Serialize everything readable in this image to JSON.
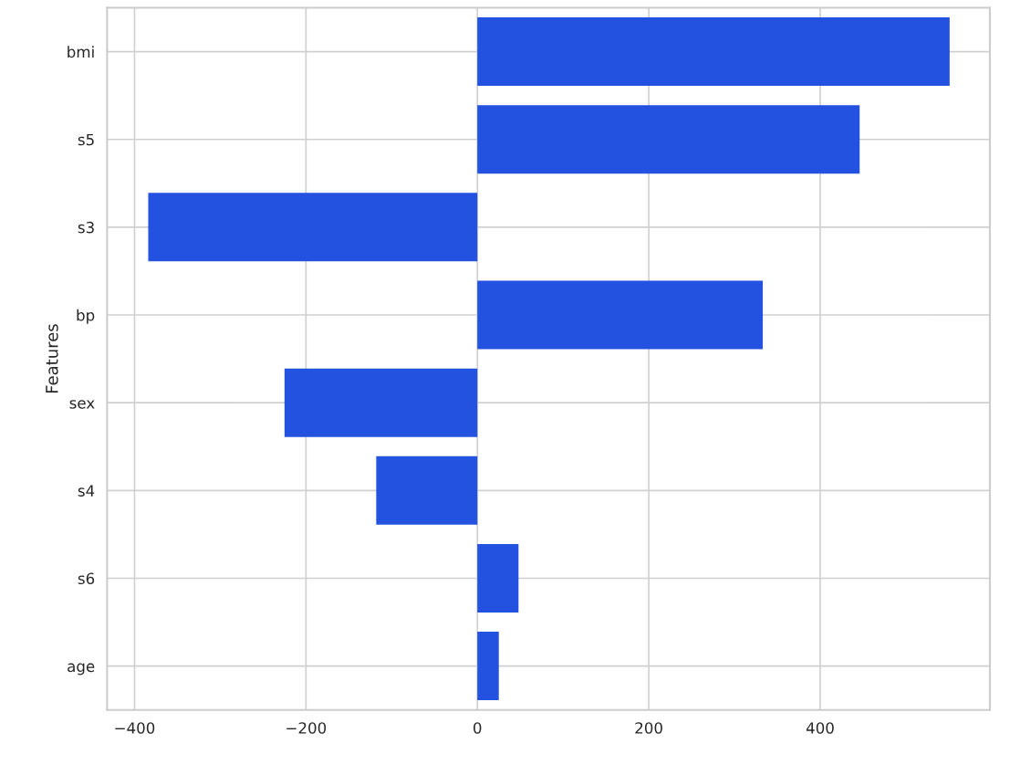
{
  "chart_data": {
    "type": "bar",
    "orientation": "horizontal",
    "ylabel": "Features",
    "categories": [
      "bmi",
      "s5",
      "s3",
      "bp",
      "sex",
      "s4",
      "s6",
      "age"
    ],
    "values": [
      551,
      446,
      -384,
      333,
      -225,
      -118,
      48,
      25
    ],
    "color": "#2351e0",
    "xlim": [
      -432,
      598
    ],
    "xticks": [
      -400,
      -200,
      0,
      200,
      400
    ],
    "grid": true,
    "legend": false
  }
}
